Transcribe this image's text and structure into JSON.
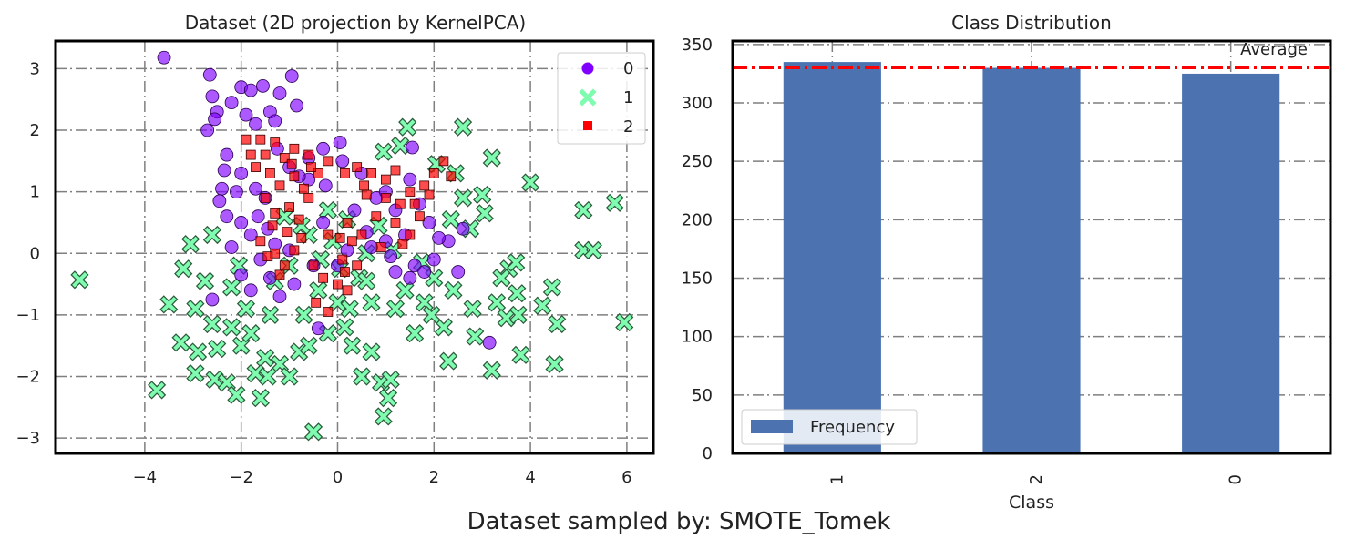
{
  "suptitle": "Dataset sampled by: SMOTE_Tomek",
  "chart_data": [
    {
      "type": "scatter",
      "title": "Dataset (2D projection by KernelPCA)",
      "xlabel": "",
      "ylabel": "",
      "xlim": [
        -5.85,
        6.55
      ],
      "ylim": [
        -3.25,
        3.45
      ],
      "xticks": [
        -4,
        -2,
        0,
        2,
        4,
        6
      ],
      "yticks": [
        -3,
        -2,
        -1,
        0,
        1,
        2,
        3
      ],
      "xtick_labels": [
        "−4",
        "−2",
        "0",
        "2",
        "4",
        "6"
      ],
      "ytick_labels": [
        "−3",
        "−2",
        "−1",
        "0",
        "1",
        "2",
        "3"
      ],
      "grid": true,
      "legend_position": "top-right",
      "series": [
        {
          "name": "0",
          "color": "#8000ff",
          "marker": "circle",
          "points": [
            [
              -3.6,
              3.18
            ],
            [
              -2.65,
              2.9
            ],
            [
              -2.0,
              2.7
            ],
            [
              -1.8,
              2.65
            ],
            [
              -1.55,
              2.72
            ],
            [
              -0.95,
              2.88
            ],
            [
              -2.6,
              2.55
            ],
            [
              -2.2,
              2.45
            ],
            [
              -1.2,
              2.6
            ],
            [
              -0.85,
              2.4
            ],
            [
              -2.5,
              2.3
            ],
            [
              -1.9,
              2.25
            ],
            [
              -1.4,
              2.3
            ],
            [
              -2.7,
              2.0
            ],
            [
              -2.55,
              2.18
            ],
            [
              -1.7,
              2.1
            ],
            [
              -1.3,
              2.15
            ],
            [
              -0.6,
              1.55
            ],
            [
              -0.3,
              1.7
            ],
            [
              0.05,
              1.8
            ],
            [
              -2.3,
              1.6
            ],
            [
              -2.0,
              1.3
            ],
            [
              -2.4,
              1.05
            ],
            [
              -2.1,
              1.0
            ],
            [
              -1.7,
              1.05
            ],
            [
              -1.5,
              0.9
            ],
            [
              -2.3,
              0.6
            ],
            [
              -2.0,
              0.5
            ],
            [
              -1.8,
              0.3
            ],
            [
              -2.2,
              0.1
            ],
            [
              -1.3,
              0.15
            ],
            [
              -1.0,
              0.05
            ],
            [
              -1.6,
              -0.1
            ],
            [
              -2.0,
              -0.35
            ],
            [
              -1.4,
              -0.4
            ],
            [
              -1.8,
              -0.6
            ],
            [
              -1.2,
              -0.7
            ],
            [
              -2.6,
              -0.75
            ],
            [
              -0.9,
              -0.5
            ],
            [
              -0.4,
              -1.22
            ],
            [
              -0.6,
              1.2
            ],
            [
              -0.25,
              1.1
            ],
            [
              0.1,
              1.5
            ],
            [
              0.5,
              1.3
            ],
            [
              0.8,
              0.9
            ],
            [
              1.0,
              1.0
            ],
            [
              1.2,
              0.7
            ],
            [
              1.5,
              1.2
            ],
            [
              1.7,
              0.8
            ],
            [
              1.9,
              0.5
            ],
            [
              1.4,
              0.3
            ],
            [
              1.0,
              0.2
            ],
            [
              0.6,
              0.35
            ],
            [
              0.2,
              0.05
            ],
            [
              0.0,
              -0.2
            ],
            [
              1.6,
              -0.2
            ],
            [
              1.8,
              -0.3
            ],
            [
              2.0,
              -0.1
            ],
            [
              2.3,
              0.2
            ],
            [
              2.6,
              0.4
            ],
            [
              2.5,
              -0.3
            ],
            [
              1.5,
              -0.4
            ],
            [
              1.2,
              -0.3
            ],
            [
              1.55,
              1.72
            ],
            [
              3.15,
              -1.45
            ],
            [
              0.35,
              0.7
            ],
            [
              -0.3,
              0.5
            ],
            [
              0.7,
              0.1
            ],
            [
              1.1,
              -0.05
            ],
            [
              2.1,
              0.25
            ],
            [
              -1.25,
              1.7
            ],
            [
              -1.0,
              1.4
            ],
            [
              -0.8,
              1.25
            ],
            [
              -2.45,
              0.85
            ],
            [
              -2.35,
              1.35
            ],
            [
              -1.65,
              0.6
            ],
            [
              -1.45,
              0.4
            ],
            [
              -0.5,
              -0.2
            ]
          ]
        },
        {
          "name": "1",
          "color": "#7ffcb0",
          "marker": "x",
          "points": [
            [
              -5.35,
              -0.43
            ],
            [
              -3.75,
              -2.22
            ],
            [
              -3.5,
              -0.83
            ],
            [
              -3.2,
              -0.25
            ],
            [
              -3.05,
              0.15
            ],
            [
              -2.95,
              -0.9
            ],
            [
              -2.9,
              -1.6
            ],
            [
              -2.95,
              -1.95
            ],
            [
              -2.6,
              0.3
            ],
            [
              -2.5,
              -1.55
            ],
            [
              -2.55,
              -2.05
            ],
            [
              -2.3,
              -2.1
            ],
            [
              -2.2,
              -1.2
            ],
            [
              -2.1,
              -2.3
            ],
            [
              -2.0,
              -1.5
            ],
            [
              -1.9,
              -0.9
            ],
            [
              -1.8,
              -1.3
            ],
            [
              -1.6,
              -2.35
            ],
            [
              -1.5,
              -1.7
            ],
            [
              -1.4,
              -1.0
            ],
            [
              -1.2,
              -1.8
            ],
            [
              -1.0,
              -2.0
            ],
            [
              -0.8,
              -1.6
            ],
            [
              -0.7,
              -1.0
            ],
            [
              -0.5,
              -2.9
            ],
            [
              -0.4,
              -0.6
            ],
            [
              -0.2,
              -1.3
            ],
            [
              0.0,
              -0.8
            ],
            [
              0.3,
              -1.5
            ],
            [
              0.5,
              -2.0
            ],
            [
              0.7,
              -1.6
            ],
            [
              0.9,
              -2.1
            ],
            [
              0.95,
              -2.65
            ],
            [
              1.05,
              -2.35
            ],
            [
              1.1,
              -2.05
            ],
            [
              1.2,
              -0.9
            ],
            [
              1.4,
              -0.6
            ],
            [
              1.6,
              -1.3
            ],
            [
              1.8,
              -0.8
            ],
            [
              2.0,
              -0.4
            ],
            [
              2.2,
              -1.2
            ],
            [
              2.3,
              -1.75
            ],
            [
              2.4,
              -0.6
            ],
            [
              2.6,
              0.9
            ],
            [
              2.8,
              -0.9
            ],
            [
              2.85,
              -1.35
            ],
            [
              3.0,
              0.95
            ],
            [
              3.05,
              0.65
            ],
            [
              3.2,
              1.55
            ],
            [
              3.3,
              -0.8
            ],
            [
              3.5,
              -1.05
            ],
            [
              3.55,
              -0.25
            ],
            [
              3.7,
              -0.15
            ],
            [
              3.72,
              -0.65
            ],
            [
              3.75,
              -1.0
            ],
            [
              3.8,
              -1.65
            ],
            [
              4.0,
              1.15
            ],
            [
              4.25,
              -0.85
            ],
            [
              4.45,
              -0.55
            ],
            [
              4.55,
              -1.15
            ],
            [
              4.5,
              -1.8
            ],
            [
              5.1,
              0.05
            ],
            [
              5.1,
              0.7
            ],
            [
              5.3,
              0.05
            ],
            [
              5.75,
              0.82
            ],
            [
              5.95,
              -1.12
            ],
            [
              3.2,
              -1.9
            ],
            [
              2.6,
              2.05
            ],
            [
              1.45,
              2.05
            ],
            [
              0.95,
              1.65
            ],
            [
              1.3,
              1.75
            ],
            [
              2.05,
              1.45
            ],
            [
              2.45,
              1.3
            ],
            [
              -0.6,
              0.3
            ],
            [
              -0.2,
              0.7
            ],
            [
              0.2,
              0.55
            ],
            [
              0.6,
              0.0
            ],
            [
              0.85,
              0.45
            ],
            [
              1.15,
              0.05
            ],
            [
              -1.0,
              -0.2
            ],
            [
              -0.1,
              0.2
            ],
            [
              -0.35,
              -0.1
            ],
            [
              0.45,
              -0.4
            ],
            [
              0.25,
              -0.9
            ],
            [
              -1.1,
              0.6
            ],
            [
              -0.75,
              0.45
            ],
            [
              0.05,
              -0.25
            ],
            [
              -1.7,
              -1.95
            ],
            [
              -2.6,
              -1.15
            ],
            [
              -2.2,
              -0.55
            ],
            [
              -1.3,
              -0.45
            ],
            [
              0.7,
              -0.8
            ],
            [
              1.75,
              -0.15
            ],
            [
              2.35,
              0.55
            ],
            [
              3.4,
              -0.4
            ],
            [
              2.75,
              0.4
            ],
            [
              -0.6,
              -1.5
            ],
            [
              -1.45,
              -2.0
            ],
            [
              0.6,
              -0.45
            ],
            [
              1.95,
              -1.0
            ],
            [
              -2.75,
              -0.45
            ],
            [
              -3.25,
              -1.45
            ],
            [
              -2.05,
              -0.2
            ],
            [
              0.15,
              -1.2
            ]
          ]
        },
        {
          "name": "2",
          "color": "#ff0000",
          "marker": "square",
          "points": [
            [
              -1.9,
              1.85
            ],
            [
              -1.6,
              1.85
            ],
            [
              -1.3,
              1.8
            ],
            [
              -1.1,
              1.55
            ],
            [
              -0.9,
              1.7
            ],
            [
              -0.6,
              1.6
            ],
            [
              -1.7,
              1.4
            ],
            [
              -1.4,
              1.3
            ],
            [
              -1.2,
              1.1
            ],
            [
              -0.9,
              1.25
            ],
            [
              -0.7,
              1.05
            ],
            [
              -1.5,
              0.9
            ],
            [
              -1.3,
              0.65
            ],
            [
              -1.0,
              0.75
            ],
            [
              -0.8,
              0.55
            ],
            [
              -1.6,
              0.2
            ],
            [
              -1.3,
              0.0
            ],
            [
              -1.1,
              -0.2
            ],
            [
              -0.9,
              0.05
            ],
            [
              -1.2,
              -0.35
            ],
            [
              -0.5,
              -0.2
            ],
            [
              -0.3,
              -0.4
            ],
            [
              0.0,
              -0.5
            ],
            [
              0.2,
              -0.6
            ],
            [
              0.1,
              -0.1
            ],
            [
              0.3,
              0.2
            ],
            [
              0.5,
              0.3
            ],
            [
              0.2,
              0.5
            ],
            [
              -0.2,
              0.3
            ],
            [
              0.4,
              1.4
            ],
            [
              0.7,
              1.3
            ],
            [
              1.0,
              1.2
            ],
            [
              1.2,
              1.35
            ],
            [
              1.0,
              0.9
            ],
            [
              1.3,
              0.8
            ],
            [
              1.5,
              1.0
            ],
            [
              1.8,
              1.1
            ],
            [
              2.0,
              1.3
            ],
            [
              2.2,
              1.5
            ],
            [
              1.7,
              0.6
            ],
            [
              1.5,
              0.3
            ],
            [
              1.2,
              0.5
            ],
            [
              0.8,
              0.6
            ],
            [
              0.6,
              0.95
            ],
            [
              0.9,
              0.1
            ],
            [
              -0.2,
              1.5
            ],
            [
              -0.4,
              1.3
            ],
            [
              -0.6,
              0.9
            ],
            [
              -0.45,
              -0.8
            ],
            [
              -0.2,
              -0.95
            ],
            [
              0.15,
              -0.3
            ],
            [
              0.05,
              0.25
            ],
            [
              0.4,
              -0.2
            ],
            [
              1.9,
              0.95
            ],
            [
              2.35,
              1.25
            ],
            [
              -1.8,
              1.6
            ],
            [
              -1.5,
              1.6
            ],
            [
              -0.95,
              1.45
            ],
            [
              -0.55,
              1.4
            ],
            [
              -1.35,
              0.45
            ],
            [
              -1.05,
              0.35
            ],
            [
              -0.75,
              0.25
            ],
            [
              -1.45,
              -0.05
            ],
            [
              1.6,
              0.8
            ],
            [
              1.35,
              0.15
            ],
            [
              0.55,
              1.1
            ],
            [
              0.15,
              1.3
            ]
          ]
        }
      ]
    },
    {
      "type": "bar",
      "title": "Class Distribution",
      "xlabel": "Class",
      "ylabel": "",
      "categories": [
        "1",
        "2",
        "0"
      ],
      "values": [
        335,
        330,
        325
      ],
      "ylim": [
        0,
        353
      ],
      "yticks": [
        0,
        50,
        100,
        150,
        200,
        250,
        300,
        350
      ],
      "color": "#4c72b0",
      "legend_label": "Frequency",
      "legend_position": "bottom-left",
      "grid": true,
      "average_line": {
        "label": "Average",
        "value": 330,
        "color": "#ff0000"
      }
    }
  ]
}
